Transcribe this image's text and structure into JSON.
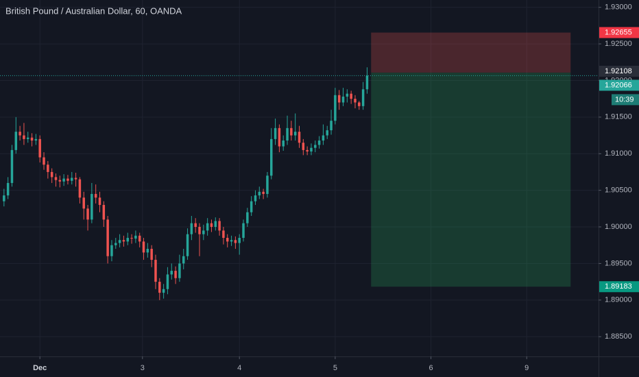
{
  "chart_data": {
    "type": "candlestick",
    "title": "British Pound / Australian Dollar, 60, OANDA",
    "up_color": "#26a69a",
    "down_color": "#ef5350",
    "grid": true,
    "xlim": [
      -1,
      149
    ],
    "xticks": [
      {
        "value": 9,
        "label": "Dec"
      },
      {
        "value": 34.7,
        "label": "3"
      },
      {
        "value": 59,
        "label": "4"
      },
      {
        "value": 83,
        "label": "5"
      },
      {
        "value": 107,
        "label": "6"
      },
      {
        "value": 131,
        "label": "9"
      }
    ],
    "ylim": [
      1.8823,
      1.931
    ],
    "yticks": [
      {
        "value": 1.93,
        "label": "1.93000"
      },
      {
        "value": 1.925,
        "label": "1.92500"
      },
      {
        "value": 1.92,
        "label": "1.92000"
      },
      {
        "value": 1.915,
        "label": "1.91500"
      },
      {
        "value": 1.91,
        "label": "1.91000"
      },
      {
        "value": 1.905,
        "label": "1.90500"
      },
      {
        "value": 1.9,
        "label": "1.90000"
      },
      {
        "value": 1.895,
        "label": "1.89500"
      },
      {
        "value": 1.89,
        "label": "1.89000"
      },
      {
        "value": 1.885,
        "label": "1.88500"
      }
    ],
    "open": [
      1.9035,
      1.9043,
      1.906,
      1.9105,
      1.913,
      1.9125,
      1.912,
      1.9122,
      1.9118,
      1.912,
      1.9095,
      1.9085,
      1.9075,
      1.9068,
      1.9064,
      1.9062,
      1.9066,
      1.9063,
      1.9067,
      1.9065,
      1.904,
      1.9025,
      1.901,
      1.9045,
      1.904,
      1.903,
      1.901,
      1.896,
      1.8975,
      1.8978,
      1.8982,
      1.898,
      1.8985,
      1.8984,
      1.8988,
      1.898,
      1.8965,
      1.897,
      1.8955,
      1.8925,
      1.891,
      1.8915,
      1.8935,
      1.894,
      1.893,
      1.895,
      1.896,
      1.899,
      1.9005,
      1.9,
      1.899,
      1.8995,
      1.9005,
      1.9,
      1.9008,
      1.8995,
      1.8985,
      1.898,
      1.8982,
      1.8978,
      1.8985,
      1.9005,
      1.902,
      1.9035,
      1.9043,
      1.9048,
      1.9045,
      1.907,
      1.912,
      1.9135,
      1.911,
      1.9118,
      1.9135,
      1.9125,
      1.913,
      1.9115,
      1.9105,
      1.9103,
      1.9108,
      1.9112,
      1.9118,
      1.9125,
      1.9132,
      1.9145,
      1.918,
      1.917,
      1.9178,
      1.9182,
      1.9175,
      1.917,
      1.9165,
      1.9188
    ],
    "high": [
      1.9052,
      1.9068,
      1.9112,
      1.915,
      1.9138,
      1.9142,
      1.913,
      1.9128,
      1.9127,
      1.9125,
      1.9102,
      1.909,
      1.908,
      1.9073,
      1.907,
      1.9072,
      1.9071,
      1.9075,
      1.9074,
      1.9068,
      1.9048,
      1.903,
      1.906,
      1.9058,
      1.9048,
      1.9035,
      1.9015,
      1.8982,
      1.8985,
      1.899,
      1.8988,
      1.8992,
      1.899,
      1.8995,
      1.8992,
      1.8985,
      1.8978,
      1.8975,
      1.8962,
      1.893,
      1.8922,
      1.8945,
      1.895,
      1.8946,
      1.8962,
      1.897,
      1.8998,
      1.9015,
      1.9012,
      1.9005,
      1.9003,
      1.9012,
      1.901,
      1.9013,
      1.9012,
      1.9,
      1.899,
      1.8988,
      1.8987,
      1.899,
      1.901,
      1.9026,
      1.9042,
      1.905,
      1.9055,
      1.9052,
      1.9075,
      1.9135,
      1.9148,
      1.914,
      1.9125,
      1.9152,
      1.9145,
      1.9155,
      1.9138,
      1.912,
      1.911,
      1.9114,
      1.9118,
      1.9124,
      1.914,
      1.9138,
      1.916,
      1.919,
      1.9187,
      1.919,
      1.9188,
      1.9186,
      1.918,
      1.9172,
      1.9198,
      1.9218
    ],
    "low": [
      1.9028,
      1.9038,
      1.9055,
      1.91,
      1.9118,
      1.9112,
      1.9115,
      1.911,
      1.9112,
      1.9088,
      1.9078,
      1.9066,
      1.906,
      1.9055,
      1.9054,
      1.9056,
      1.9058,
      1.9058,
      1.9055,
      1.9032,
      1.901,
      1.8995,
      1.9005,
      1.9032,
      1.902,
      1.9,
      1.895,
      1.8953,
      1.897,
      1.8972,
      1.8973,
      1.8975,
      1.8977,
      1.8978,
      1.8972,
      1.8955,
      1.8958,
      1.8945,
      1.8915,
      1.89,
      1.8902,
      1.8908,
      1.8928,
      1.8922,
      1.8925,
      1.8942,
      1.8955,
      1.8982,
      1.8992,
      1.896,
      1.8982,
      1.8988,
      1.8993,
      1.8995,
      1.8988,
      1.8976,
      1.8972,
      1.8974,
      1.897,
      1.8962,
      1.898,
      1.9,
      1.9015,
      1.903,
      1.9038,
      1.9038,
      1.904,
      1.9065,
      1.9112,
      1.9102,
      1.9104,
      1.9112,
      1.9118,
      1.9118,
      1.9108,
      1.9098,
      1.9098,
      1.9098,
      1.9102,
      1.9107,
      1.9112,
      1.912,
      1.9126,
      1.914,
      1.916,
      1.9165,
      1.917,
      1.9168,
      1.9162,
      1.916,
      1.916,
      1.9182
    ],
    "close": [
      1.9043,
      1.906,
      1.9105,
      1.913,
      1.9125,
      1.912,
      1.9122,
      1.9118,
      1.912,
      1.9095,
      1.9085,
      1.9075,
      1.9068,
      1.9064,
      1.9062,
      1.9066,
      1.9063,
      1.9067,
      1.9065,
      1.904,
      1.9025,
      1.901,
      1.9045,
      1.904,
      1.903,
      1.901,
      1.896,
      1.8975,
      1.8978,
      1.8982,
      1.898,
      1.8985,
      1.8984,
      1.8988,
      1.898,
      1.8965,
      1.897,
      1.8955,
      1.8925,
      1.891,
      1.8915,
      1.8935,
      1.894,
      1.893,
      1.895,
      1.896,
      1.899,
      1.9005,
      1.9,
      1.899,
      1.8995,
      1.9005,
      1.9,
      1.9008,
      1.8995,
      1.8985,
      1.898,
      1.8982,
      1.8978,
      1.8985,
      1.9005,
      1.902,
      1.9035,
      1.9043,
      1.9048,
      1.9045,
      1.907,
      1.912,
      1.9135,
      1.911,
      1.9118,
      1.9135,
      1.9125,
      1.913,
      1.9115,
      1.9105,
      1.9103,
      1.9108,
      1.9112,
      1.9118,
      1.9125,
      1.9132,
      1.9145,
      1.918,
      1.917,
      1.9178,
      1.9182,
      1.9175,
      1.917,
      1.9165,
      1.9188,
      1.92066
    ],
    "position": {
      "entry": 1.92108,
      "stop": 1.92655,
      "target": 1.89183,
      "start": 92,
      "end": 142
    },
    "countdown": "10:39"
  }
}
